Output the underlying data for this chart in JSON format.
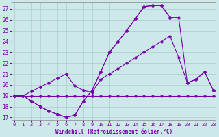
{
  "bg_color": "#cce8e8",
  "grid_color": "#aacccc",
  "line_color": "#7700aa",
  "xlabel": "Windchill (Refroidissement éolien,°C)",
  "ylabel_ticks": [
    17,
    18,
    19,
    20,
    21,
    22,
    23,
    24,
    25,
    26,
    27
  ],
  "xlabel_ticks": [
    0,
    1,
    2,
    3,
    4,
    5,
    6,
    7,
    8,
    9,
    10,
    11,
    12,
    13,
    14,
    15,
    16,
    17,
    18,
    19,
    20,
    21,
    22,
    23
  ],
  "ylim": [
    16.8,
    27.6
  ],
  "xlim": [
    -0.3,
    23.3
  ],
  "line1_x": [
    0,
    1,
    2,
    3,
    4,
    5,
    6,
    7,
    8,
    9,
    10,
    11,
    12,
    13,
    14,
    15,
    16,
    17,
    18,
    19,
    20,
    21,
    22,
    23
  ],
  "line1_y": [
    19,
    19,
    19,
    19,
    19,
    19,
    19,
    19,
    19,
    19,
    19,
    19,
    19,
    19,
    19,
    19,
    19,
    19,
    19,
    19,
    19,
    19,
    19,
    19
  ],
  "line2_x": [
    0,
    1,
    2,
    3,
    4,
    5,
    6,
    7,
    8,
    9,
    10,
    11,
    12,
    13,
    14,
    15,
    16,
    17,
    18,
    19,
    20,
    21,
    22,
    23
  ],
  "line2_y": [
    19,
    19,
    19.4,
    19.8,
    20.2,
    20.6,
    21.0,
    19.9,
    19.5,
    19.3,
    20.5,
    21.0,
    21.5,
    22.0,
    22.5,
    23.0,
    23.5,
    24.0,
    24.5,
    22.5,
    20.2,
    20.5,
    21.2,
    19.5
  ],
  "line3_x": [
    0,
    1,
    2,
    3,
    4,
    5,
    6,
    7,
    8,
    9,
    10,
    11,
    12,
    13,
    14,
    15,
    16,
    17,
    18
  ],
  "line3_y": [
    19,
    19,
    18.5,
    18.0,
    17.6,
    17.3,
    17.0,
    17.2,
    18.5,
    19.5,
    21.2,
    23.0,
    24.0,
    25.0,
    26.1,
    27.2,
    27.3,
    27.3,
    26.2
  ],
  "line4_x": [
    0,
    1,
    2,
    3,
    4,
    5,
    6,
    7,
    8,
    9,
    10,
    11,
    12,
    13,
    14,
    15,
    16,
    17,
    18,
    19,
    20,
    21,
    22,
    23
  ],
  "line4_y": [
    19,
    19,
    18.5,
    18.0,
    17.6,
    17.3,
    17.0,
    17.2,
    18.5,
    19.5,
    21.2,
    23.0,
    24.0,
    25.0,
    26.1,
    27.2,
    27.3,
    27.3,
    26.2,
    26.2,
    20.2,
    20.5,
    21.2,
    19.5
  ]
}
